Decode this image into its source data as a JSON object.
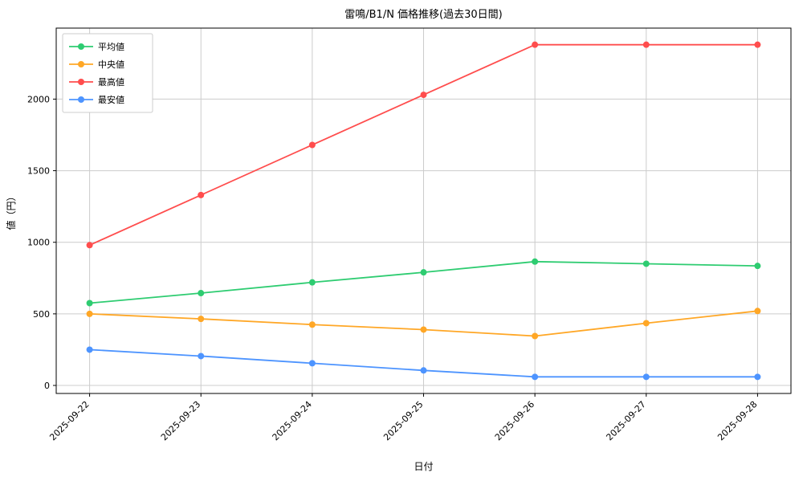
{
  "figure": {
    "title": "雷鳴/B1/N 価格推移(過去30日間)",
    "xlabel": "日付",
    "ylabel": "値（円）"
  },
  "chart_data": {
    "type": "line",
    "title": "雷鳴/B1/N 価格推移(過去30日間)",
    "xlabel": "日付",
    "ylabel": "値（円）",
    "categories": [
      "2025-09-22",
      "2025-09-23",
      "2025-09-24",
      "2025-09-25",
      "2025-09-26",
      "2025-09-27",
      "2025-09-28"
    ],
    "series": [
      {
        "name": "平均値",
        "color": "#2ecc71",
        "values": [
          575,
          645,
          720,
          790,
          865,
          850,
          835
        ]
      },
      {
        "name": "中央値",
        "color": "#ffa726",
        "values": [
          500,
          465,
          425,
          390,
          345,
          435,
          520
        ]
      },
      {
        "name": "最高値",
        "color": "#ff4d4d",
        "values": [
          980,
          1330,
          1680,
          2030,
          2380,
          2380,
          2380
        ]
      },
      {
        "name": "最安値",
        "color": "#4d94ff",
        "values": [
          250,
          205,
          155,
          105,
          60,
          60,
          60
        ]
      }
    ],
    "yticks": [
      0,
      500,
      1000,
      1500,
      2000
    ],
    "ylim": [
      -56,
      2496
    ],
    "grid": true,
    "grid_color": "#cccccc",
    "legend_position": "upper-left",
    "legend_border_color": "#cccccc",
    "background": "#ffffff",
    "spine_color": "#000000"
  }
}
